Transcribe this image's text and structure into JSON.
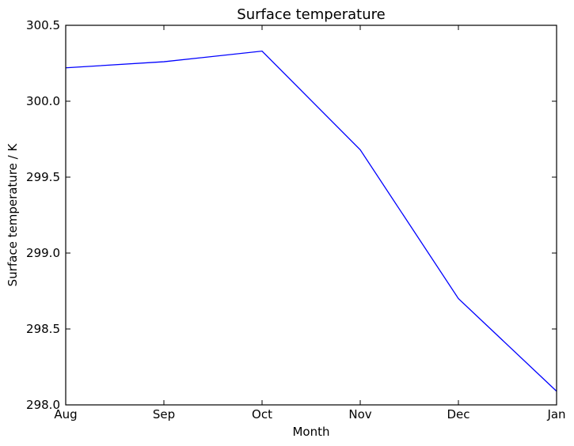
{
  "chart_data": {
    "type": "line",
    "title": "Surface temperature",
    "xlabel": "Month",
    "ylabel": "Surface temperature / K",
    "categories": [
      "Aug",
      "Sep",
      "Oct",
      "Nov",
      "Dec",
      "Jan"
    ],
    "series": [
      {
        "values": [
          300.22,
          300.26,
          300.33,
          299.68,
          298.7,
          298.09
        ],
        "color": "#0000ff"
      }
    ],
    "ylim": [
      298.0,
      300.5
    ],
    "yticks": [
      "298.0",
      "298.5",
      "299.0",
      "299.5",
      "300.0",
      "300.5"
    ],
    "grid": false,
    "legend": "none"
  }
}
